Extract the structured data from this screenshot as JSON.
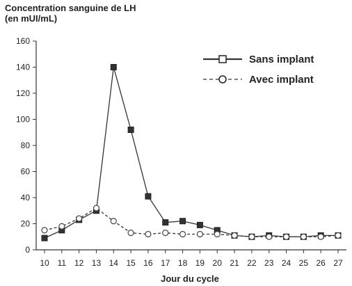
{
  "chart_data": {
    "type": "line",
    "title_lines": [
      "Concentration sanguine de LH",
      "(en mUI/mL)"
    ],
    "xlabel": "Jour du cycle",
    "ylabel": "",
    "x": [
      10,
      11,
      12,
      13,
      14,
      15,
      16,
      17,
      18,
      19,
      20,
      21,
      22,
      23,
      24,
      25,
      26,
      27
    ],
    "xlim": [
      10,
      27
    ],
    "ylim": [
      0,
      160
    ],
    "yticks": [
      0,
      20,
      40,
      60,
      80,
      100,
      120,
      140,
      160
    ],
    "grid": false,
    "legend_position": "top-right",
    "series": [
      {
        "name": "Sans implant",
        "marker": "square",
        "line_style": "solid",
        "values": [
          9,
          15,
          23,
          30,
          140,
          92,
          41,
          21,
          22,
          19,
          15,
          11,
          10,
          11,
          10,
          10,
          11,
          11
        ]
      },
      {
        "name": "Avec implant",
        "marker": "circle",
        "line_style": "dashed",
        "values": [
          15,
          18,
          24,
          32,
          22,
          13,
          12,
          13,
          12,
          12,
          12,
          11,
          10,
          10,
          10,
          10,
          10,
          11
        ]
      }
    ]
  }
}
